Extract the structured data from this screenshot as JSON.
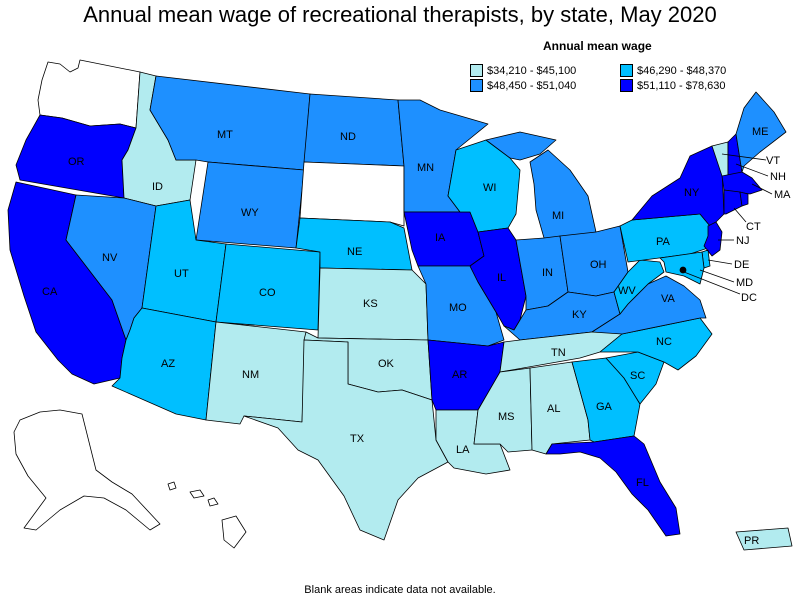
{
  "title": "Annual mean wage of recreational therapists, by state, May 2020",
  "legend": {
    "title": "Annual mean wage",
    "items": [
      {
        "label": "$34,210 - $45,100",
        "color": "#b2ebef"
      },
      {
        "label": "$46,290 - $48,370",
        "color": "#00bfff"
      },
      {
        "label": "$48,450 - $51,040",
        "color": "#1e90ff"
      },
      {
        "label": "$51,110 - $78,630",
        "color": "#0000ff"
      }
    ]
  },
  "footnote": "Blank areas indicate data not available.",
  "states": {
    "WA": {
      "label": "",
      "color": "#ffffff"
    },
    "OR": {
      "label": "OR",
      "color": "#0000ff"
    },
    "CA": {
      "label": "CA",
      "color": "#0000ff"
    },
    "ID": {
      "label": "ID",
      "color": "#b2ebef"
    },
    "NV": {
      "label": "NV",
      "color": "#1e90ff"
    },
    "MT": {
      "label": "MT",
      "color": "#1e90ff"
    },
    "WY": {
      "label": "WY",
      "color": "#1e90ff"
    },
    "UT": {
      "label": "UT",
      "color": "#00bfff"
    },
    "AZ": {
      "label": "AZ",
      "color": "#00bfff"
    },
    "CO": {
      "label": "CO",
      "color": "#00bfff"
    },
    "NM": {
      "label": "NM",
      "color": "#b2ebef"
    },
    "ND": {
      "label": "ND",
      "color": "#1e90ff"
    },
    "SD": {
      "label": "",
      "color": "#ffffff"
    },
    "NE": {
      "label": "NE",
      "color": "#00bfff"
    },
    "KS": {
      "label": "KS",
      "color": "#b2ebef"
    },
    "OK": {
      "label": "OK",
      "color": "#b2ebef"
    },
    "TX": {
      "label": "TX",
      "color": "#b2ebef"
    },
    "MN": {
      "label": "MN",
      "color": "#1e90ff"
    },
    "IA": {
      "label": "IA",
      "color": "#0000ff"
    },
    "MO": {
      "label": "MO",
      "color": "#1e90ff"
    },
    "AR": {
      "label": "AR",
      "color": "#0000ff"
    },
    "LA": {
      "label": "LA",
      "color": "#b2ebef"
    },
    "WI": {
      "label": "WI",
      "color": "#00bfff"
    },
    "IL": {
      "label": "IL",
      "color": "#0000ff"
    },
    "MI": {
      "label": "MI",
      "color": "#1e90ff"
    },
    "IN": {
      "label": "IN",
      "color": "#1e90ff"
    },
    "OH": {
      "label": "OH",
      "color": "#1e90ff"
    },
    "KY": {
      "label": "KY",
      "color": "#1e90ff"
    },
    "TN": {
      "label": "TN",
      "color": "#b2ebef"
    },
    "MS": {
      "label": "MS",
      "color": "#b2ebef"
    },
    "AL": {
      "label": "AL",
      "color": "#b2ebef"
    },
    "GA": {
      "label": "GA",
      "color": "#00bfff"
    },
    "FL": {
      "label": "FL",
      "color": "#0000ff"
    },
    "SC": {
      "label": "SC",
      "color": "#00bfff"
    },
    "NC": {
      "label": "NC",
      "color": "#00bfff"
    },
    "VA": {
      "label": "VA",
      "color": "#1e90ff"
    },
    "WV": {
      "label": "WV",
      "color": "#00bfff"
    },
    "PA": {
      "label": "PA",
      "color": "#00bfff"
    },
    "NY": {
      "label": "NY",
      "color": "#0000ff"
    },
    "VT": {
      "label": "VT",
      "color": "#b2ebef"
    },
    "NH": {
      "label": "NH",
      "color": "#0000ff"
    },
    "ME": {
      "label": "ME",
      "color": "#1e90ff"
    },
    "MA": {
      "label": "MA",
      "color": "#0000ff"
    },
    "CT": {
      "label": "CT",
      "color": "#0000ff"
    },
    "RI": {
      "label": "",
      "color": "#0000ff"
    },
    "NJ": {
      "label": "NJ",
      "color": "#0000ff"
    },
    "DE": {
      "label": "DE",
      "color": "#00bfff"
    },
    "MD": {
      "label": "MD",
      "color": "#00bfff"
    },
    "DC": {
      "label": "DC",
      "color": "#000000"
    },
    "AK": {
      "label": "",
      "color": "#ffffff"
    },
    "HI": {
      "label": "",
      "color": "#ffffff"
    },
    "PR": {
      "label": "PR",
      "color": "#b2ebef"
    }
  }
}
